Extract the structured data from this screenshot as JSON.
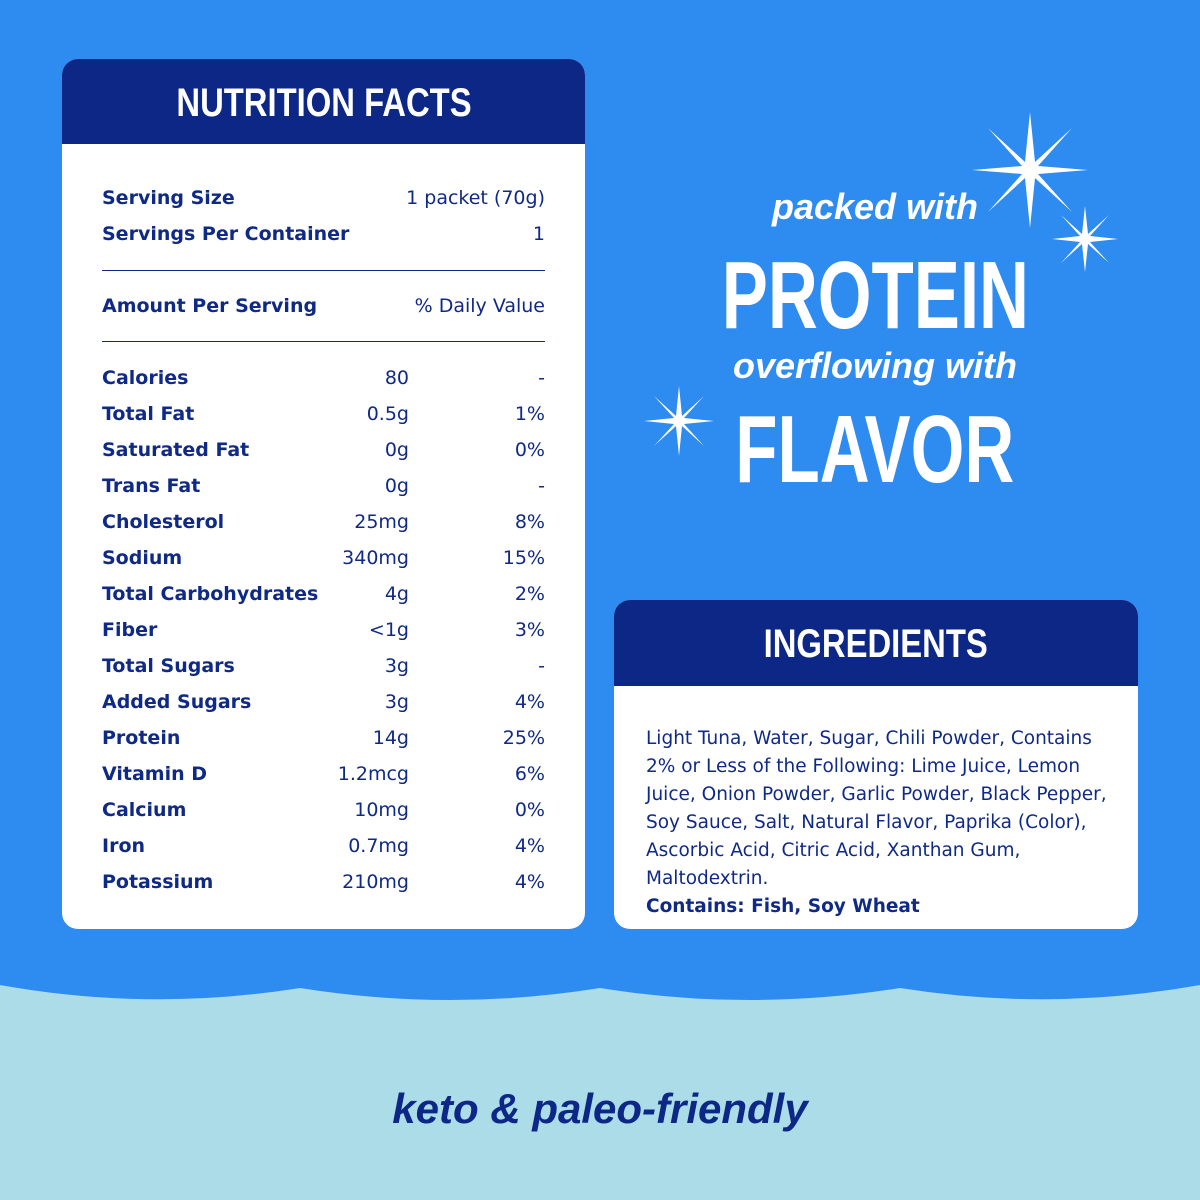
{
  "nutrition": {
    "title": "NUTRITION FACTS",
    "serving_size_label": "Serving Size",
    "serving_size_value": "1 packet (70g)",
    "servings_label": "Servings Per Container",
    "servings_value": "1",
    "amount_label": "Amount Per Serving",
    "dv_label": "% Daily Value",
    "rows": [
      {
        "label": "Calories",
        "amount": "80",
        "dv": "-"
      },
      {
        "label": "Total Fat",
        "amount": "0.5g",
        "dv": "1%"
      },
      {
        "label": "Saturated Fat",
        "amount": "0g",
        "dv": "0%"
      },
      {
        "label": "Trans Fat",
        "amount": "0g",
        "dv": "-"
      },
      {
        "label": "Cholesterol",
        "amount": "25mg",
        "dv": "8%"
      },
      {
        "label": "Sodium",
        "amount": "340mg",
        "dv": "15%"
      },
      {
        "label": "Total Carbohydrates",
        "amount": "4g",
        "dv": "2%"
      },
      {
        "label": "Fiber",
        "amount": "<1g",
        "dv": "3%"
      },
      {
        "label": "Total Sugars",
        "amount": "3g",
        "dv": "-"
      },
      {
        "label": "Added Sugars",
        "amount": "3g",
        "dv": "4%"
      },
      {
        "label": "Protein",
        "amount": "14g",
        "dv": "25%"
      },
      {
        "label": "Vitamin D",
        "amount": "1.2mcg",
        "dv": "6%"
      },
      {
        "label": "Calcium",
        "amount": "10mg",
        "dv": "0%"
      },
      {
        "label": "Iron",
        "amount": "0.7mg",
        "dv": "4%"
      },
      {
        "label": "Potassium",
        "amount": "210mg",
        "dv": "4%"
      }
    ]
  },
  "promo": {
    "line1": "packed with",
    "line2": "PROTEIN",
    "line3": "overflowing with",
    "line4": "FLAVOR"
  },
  "ingredients": {
    "title": "INGREDIENTS",
    "text": "Light Tuna, Water, Sugar, Chili Powder, Contains 2% or Less of the Following: Lime Juice, Lemon Juice, Onion Powder, Garlic Powder, Black Pepper, Soy Sauce, Salt, Natural Flavor, Paprika (Color), Ascorbic Acid, Citric Acid, Xanthan Gum, Maltodextrin.",
    "contains": "Contains: Fish, Soy Wheat"
  },
  "tagline": "keto & paleo-friendly",
  "colors": {
    "background": "#2e8bf0",
    "light_band": "#abdce8",
    "navy": "#0c2785",
    "white": "#ffffff"
  }
}
